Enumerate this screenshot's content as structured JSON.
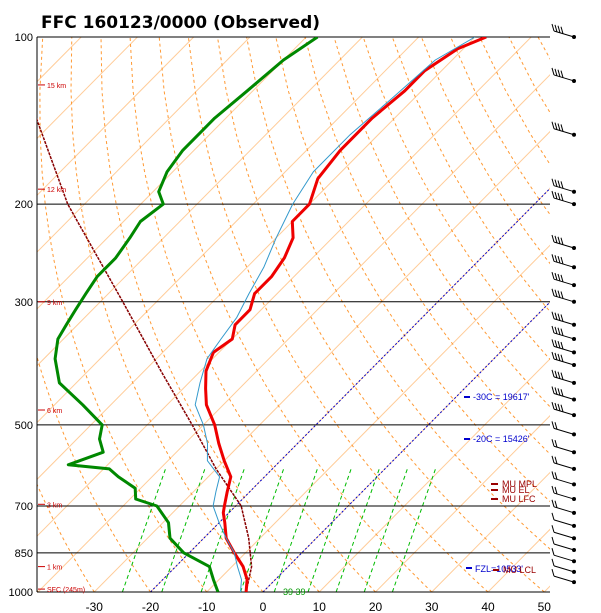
{
  "chart_data": {
    "type": "line",
    "title": "FFC   160123/0000  (Observed)",
    "pressure_ticks": [
      "100",
      "200",
      "300",
      "500",
      "700",
      "850",
      "1000"
    ],
    "pressure_values": [
      100,
      200,
      300,
      500,
      700,
      850,
      1000
    ],
    "temp_ticks": [
      "-30",
      "-20",
      "-10",
      "0",
      "10",
      "20",
      "30",
      "40",
      "50"
    ],
    "temp_values": [
      -30,
      -20,
      -10,
      0,
      10,
      20,
      30,
      40,
      50
    ],
    "height_labels": [
      {
        "text": "15 km",
        "p": 122
      },
      {
        "text": "12 km",
        "p": 188
      },
      {
        "text": "9 km",
        "p": 300
      },
      {
        "text": "6 km",
        "p": 470
      },
      {
        "text": "3 km",
        "p": 695
      },
      {
        "text": "1 km",
        "p": 900
      },
      {
        "text": "SFC (245m)",
        "p": 988
      }
    ],
    "series": [
      {
        "color": "#ee0000",
        "p": [
          100,
          105,
          115,
          125,
          140,
          160,
          180,
          200,
          215,
          230,
          250,
          270,
          290,
          310,
          330,
          350,
          370,
          400,
          430,
          460,
          500,
          540,
          580,
          620,
          660,
          700,
          720,
          750,
          800,
          850,
          900,
          950,
          1000
        ],
        "t": [
          -58,
          -61,
          -63,
          -63,
          -64,
          -64,
          -63,
          -60,
          -60,
          -57,
          -55,
          -54,
          -54,
          -52,
          -52,
          -50,
          -51,
          -49,
          -46,
          -43,
          -38,
          -34,
          -30,
          -26,
          -24,
          -22,
          -21,
          -19,
          -16,
          -12,
          -8,
          -5,
          -3
        ]
      },
      {
        "color": "#3399cc",
        "p": [
          100,
          110,
          130,
          150,
          175,
          200,
          230,
          260,
          290,
          320,
          350,
          380,
          420,
          460,
          500,
          540,
          580,
          620,
          660,
          700,
          750,
          800,
          850,
          900,
          950,
          1000
        ],
        "t": [
          -60,
          -63,
          -64,
          -65,
          -65,
          -63,
          -60,
          -57,
          -55,
          -53,
          -52,
          -51,
          -48,
          -45,
          -40,
          -36,
          -33,
          -28,
          -26,
          -24,
          -20,
          -16,
          -12,
          -9,
          -6,
          -4
        ]
      },
      {
        "color": "#008800",
        "p": [
          100,
          110,
          125,
          140,
          160,
          175,
          190,
          200,
          215,
          230,
          250,
          270,
          290,
          310,
          330,
          350,
          380,
          420,
          460,
          500,
          530,
          560,
          590,
          600,
          620,
          650,
          680,
          700,
          750,
          800,
          850,
          900,
          950,
          1000
        ],
        "t": [
          -88,
          -90,
          -91,
          -92,
          -92,
          -91,
          -89,
          -86,
          -87,
          -86,
          -85,
          -85,
          -84,
          -83,
          -82,
          -81,
          -78,
          -73,
          -65,
          -58,
          -56,
          -53,
          -57,
          -49,
          -46,
          -41,
          -39,
          -34,
          -29,
          -26,
          -21,
          -14,
          -11,
          -8
        ]
      }
    ],
    "annotations": {
      "minus30": "-30C = 19617'",
      "minus20": "-20C = 15426'",
      "mu_mpl": "MU MPL",
      "mu_el": "MU EL",
      "mu_lfc": "MU LFC",
      "fzl": "FZL=10533'",
      "mu_lcl": "MU LCL",
      "parcel_values": "39 39"
    },
    "colors": {
      "temperature": "#ee0000",
      "dewpoint": "#008800",
      "wetbulb": "#3399cc",
      "dry_adiabats": "#ff9933",
      "isotherms": "#ffcc99",
      "mixing_ratio": "#00bb00",
      "freezing": "#0000cc",
      "parcel": "#880000"
    }
  }
}
